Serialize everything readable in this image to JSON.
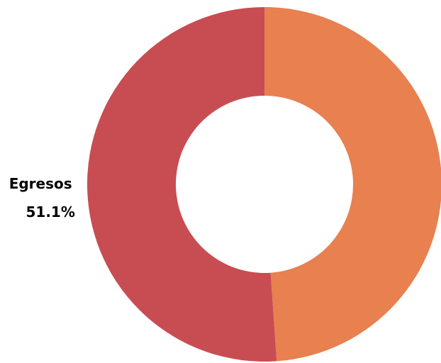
{
  "chart_data": {
    "type": "donut",
    "categories": [
      null,
      "Egresos"
    ],
    "values": [
      48.9,
      51.1
    ],
    "value_labels": [
      null,
      "51.1%"
    ],
    "colors": [
      "#e8804f",
      "#c84d53"
    ]
  }
}
